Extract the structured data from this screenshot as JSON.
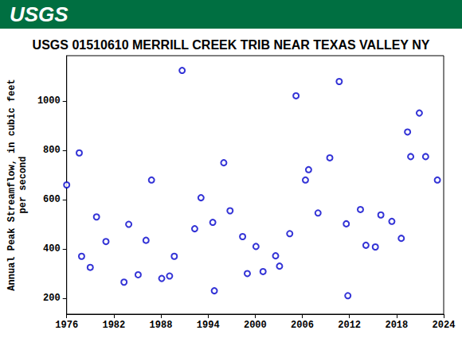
{
  "header": {
    "logo": "USGS"
  },
  "chart_data": {
    "type": "scatter",
    "title": "USGS 01510610 MERRILL CREEK TRIB NEAR TEXAS VALLEY NY",
    "y_label": "Annual Peak Streamflow, in cubic feet\nper second",
    "x": [
      1976.0,
      1977.6,
      1977.9,
      1979.0,
      1979.8,
      1981.0,
      1983.3,
      1983.9,
      1985.1,
      1986.1,
      1986.8,
      1988.1,
      1989.1,
      1989.7,
      1990.7,
      1992.3,
      1993.1,
      1994.6,
      1994.8,
      1996.0,
      1996.8,
      1998.4,
      1999.0,
      2000.1,
      2001.0,
      2002.6,
      2003.1,
      2004.4,
      2005.2,
      2006.4,
      2006.8,
      2008.0,
      2009.5,
      2010.7,
      2011.6,
      2011.8,
      2013.4,
      2014.1,
      2015.3,
      2016.0,
      2017.4,
      2018.6,
      2019.4,
      2019.8,
      2020.9,
      2021.7,
      2023.2
    ],
    "values": [
      660,
      790,
      370,
      325,
      530,
      430,
      265,
      500,
      295,
      435,
      680,
      280,
      290,
      370,
      1125,
      482,
      608,
      508,
      230,
      750,
      555,
      450,
      300,
      410,
      308,
      372,
      330,
      462,
      1022,
      680,
      722,
      546,
      770,
      1080,
      502,
      210,
      560,
      415,
      408,
      538,
      512,
      443,
      875,
      775,
      952,
      775,
      680
    ],
    "color": "#0000cc",
    "marker": "circle",
    "xlim": [
      1976,
      2024
    ],
    "xticks": [
      1976,
      1982,
      1988,
      1994,
      2000,
      2006,
      2012,
      2018,
      2024
    ],
    "ylim": [
      135,
      1185
    ],
    "yticks": [
      200,
      400,
      600,
      800,
      1000
    ],
    "grid": false
  }
}
